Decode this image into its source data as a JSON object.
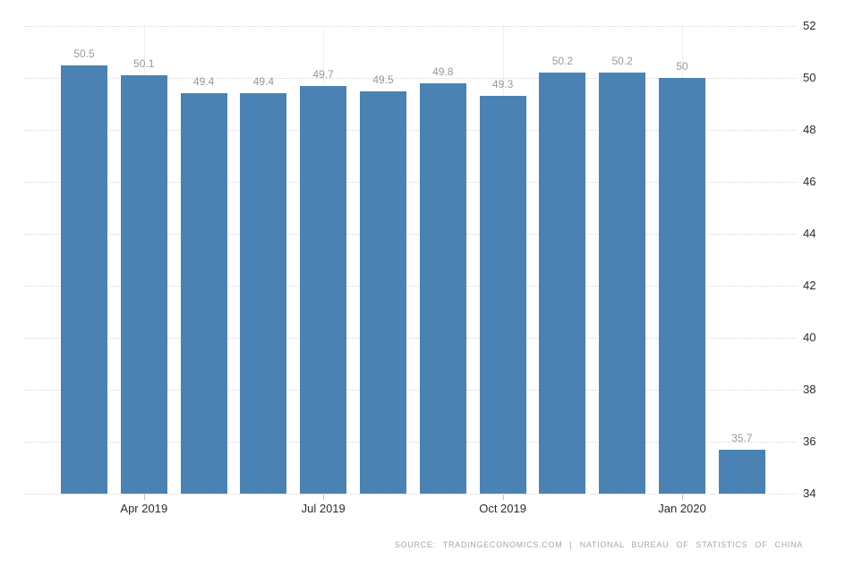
{
  "chart_data": {
    "type": "bar",
    "title": "",
    "xlabel": "",
    "ylabel": "",
    "values": [
      50.5,
      50.1,
      49.4,
      49.4,
      49.7,
      49.5,
      49.8,
      49.3,
      50.2,
      50.2,
      50,
      35.7
    ],
    "value_labels": [
      "50.5",
      "50.1",
      "49.4",
      "49.4",
      "49.7",
      "49.5",
      "49.8",
      "49.3",
      "50.2",
      "50.2",
      "50",
      "35.7"
    ],
    "x_ticks": [
      {
        "index": 1,
        "label": "Apr 2019"
      },
      {
        "index": 4,
        "label": "Jul 2019"
      },
      {
        "index": 7,
        "label": "Oct 2019"
      },
      {
        "index": 10,
        "label": "Jan 2020"
      }
    ],
    "y_ticks": [
      "52",
      "50",
      "48",
      "46",
      "44",
      "42",
      "40",
      "38",
      "36",
      "34"
    ],
    "ylim": [
      34,
      52
    ],
    "grid": true,
    "legend_position": "none",
    "bar_color": "#4a82b4",
    "value_label_color": "#999999",
    "axis_label_color": "#2b2b2b",
    "source_note_color": "#a6a6a6"
  },
  "source_note": "SOURCE: TRADINGECONOMICS.COM | NATIONAL BUREAU OF STATISTICS OF CHINA"
}
